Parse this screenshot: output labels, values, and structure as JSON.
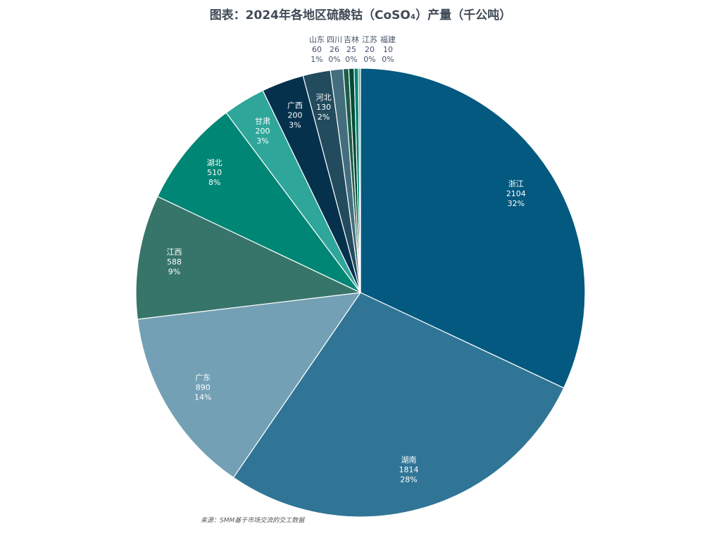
{
  "chart_data": {
    "type": "pie",
    "title": "图表：2024年各地区硫酸钴（CoSO₄）产量（千公吨）",
    "source": "来源：SMM基于市场交流的交工数据",
    "categories": [
      "浙江",
      "湖南",
      "广东",
      "江西",
      "湖北",
      "甘肃",
      "广西",
      "河北",
      "山东",
      "四川",
      "吉林",
      "江苏",
      "福建"
    ],
    "values": [
      2104,
      1814,
      890,
      588,
      510,
      200,
      200,
      130,
      60,
      26,
      25,
      20,
      10
    ],
    "percent_labels": [
      "32%",
      "28%",
      "14%",
      "9%",
      "8%",
      "3%",
      "3%",
      "2%",
      "1%",
      "0%",
      "0%",
      "0%",
      "0%"
    ],
    "colors": [
      "#03597f",
      "#307596",
      "#73a0b5",
      "#37756a",
      "#008674",
      "#2ea699",
      "#05314d",
      "#224b5e",
      "#436e7e",
      "#1c5d4a",
      "#004a36",
      "#008577",
      "#49b0a0"
    ]
  }
}
